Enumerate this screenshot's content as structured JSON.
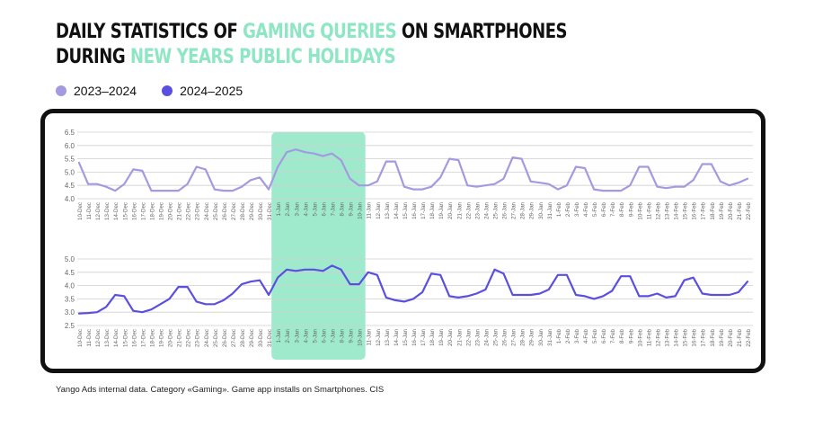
{
  "title": {
    "line1_a": "DAILY STATISTICS OF ",
    "line1_hl": "GAMING QUERIES",
    "line1_b": " ON SMARTPHONES",
    "line2_a": "DURING ",
    "line2_hl": "NEW YEARS PUBLIC HOLIDAYS",
    "highlight_color": "#8ee6c4"
  },
  "legend": [
    {
      "label": "2023–2024",
      "color": "#a39ae0"
    },
    {
      "label": "2024–2025",
      "color": "#5b4fe0"
    }
  ],
  "footnote": "Yango Ads internal data. Category «Gaming». Game app installs on Smartphones. CIS",
  "chart_data": [
    {
      "type": "line",
      "series": [
        {
          "name": "2023–2024",
          "color": "#a39ae0",
          "values": [
            5.35,
            4.55,
            4.55,
            4.45,
            4.3,
            4.55,
            5.1,
            5.05,
            4.3,
            4.3,
            4.3,
            4.3,
            4.55,
            5.2,
            5.1,
            4.35,
            4.3,
            4.3,
            4.45,
            4.7,
            4.8,
            4.35,
            5.2,
            5.75,
            5.85,
            5.75,
            5.7,
            5.6,
            5.7,
            5.45,
            4.75,
            4.5,
            4.5,
            4.65,
            5.4,
            5.4,
            4.45,
            4.35,
            4.35,
            4.45,
            4.8,
            5.5,
            5.45,
            4.5,
            4.45,
            4.5,
            4.55,
            4.75,
            5.55,
            5.5,
            4.65,
            4.6,
            4.55,
            4.35,
            4.5,
            5.2,
            5.15,
            4.35,
            4.3,
            4.3,
            4.3,
            4.5,
            5.2,
            5.2,
            4.45,
            4.4,
            4.45,
            4.45,
            4.7,
            5.3,
            5.3,
            4.65,
            4.5,
            4.6,
            4.75
          ]
        }
      ],
      "ylim": [
        4.0,
        6.5
      ],
      "yticks": [
        "4.0",
        "4.5",
        "5.0",
        "5.5",
        "6.0",
        "6.5"
      ],
      "grid": true,
      "highlight_range": [
        "1-Jan",
        "10-Jan"
      ]
    },
    {
      "type": "line",
      "series": [
        {
          "name": "2024–2025",
          "color": "#5b4fe0",
          "values": [
            2.95,
            2.97,
            3.0,
            3.2,
            3.65,
            3.6,
            3.05,
            3.0,
            3.1,
            3.3,
            3.5,
            3.95,
            3.95,
            3.4,
            3.3,
            3.3,
            3.45,
            3.7,
            4.05,
            4.15,
            4.2,
            3.65,
            4.3,
            4.6,
            4.55,
            4.6,
            4.6,
            4.55,
            4.75,
            4.6,
            4.05,
            4.05,
            4.5,
            4.4,
            3.55,
            3.45,
            3.4,
            3.5,
            3.75,
            4.45,
            4.4,
            3.6,
            3.55,
            3.6,
            3.7,
            3.85,
            4.6,
            4.45,
            3.65,
            3.65,
            3.65,
            3.7,
            3.85,
            4.4,
            4.4,
            3.65,
            3.6,
            3.5,
            3.6,
            3.8,
            4.35,
            4.35,
            3.6,
            3.6,
            3.7,
            3.55,
            3.6,
            4.2,
            4.3,
            3.7,
            3.65,
            3.65,
            3.65,
            3.75,
            4.15
          ]
        }
      ],
      "ylim": [
        2.5,
        5.0
      ],
      "yticks": [
        "2.5",
        "3.0",
        "3.5",
        "4.0",
        "4.5",
        "5.0"
      ],
      "grid": true,
      "highlight_range": [
        "1-Jan",
        "10-Jan"
      ]
    }
  ],
  "x_labels": {
    "top": [
      "10-Dec",
      "11-Dec",
      "12-Dec",
      "13-Dec",
      "14-Dec",
      "15-Dec",
      "16-Dec",
      "17-Dec",
      "18-Dec",
      "19-Dec",
      "20-Dec",
      "21-Dec",
      "22-Dec",
      "23-Dec",
      "24-Dec",
      "25-Dec",
      "26-Dec",
      "27-Dec",
      "28-Dec",
      "29-Dec",
      "30-Dec",
      "31-Dec",
      "1-Jan",
      "2-Jan",
      "3-Jan",
      "4-Jan",
      "5-Jan",
      "6-Jan",
      "7-Jan",
      "8-Jan",
      "9-Jan",
      "10-Jan",
      "11-Jan",
      "12-Jan",
      "13-Jan",
      "14-Jan",
      "15-Jan",
      "16-Jan",
      "17-Jan",
      "18-Jan",
      "19-Jan",
      "20-Jan",
      "21-Jan",
      "22-Jan",
      "23-Jan",
      "24-Jan",
      "25-Jan",
      "26-Jan",
      "27-Jan",
      "28-Jan",
      "29-Jan",
      "30-Jan",
      "31-Jan",
      "1-Feb",
      "2-Feb",
      "3-Feb",
      "4-Feb",
      "5-Feb",
      "6-Feb",
      "7-Feb",
      "8-Feb",
      "9-Feb",
      "10-Feb",
      "11-Feb",
      "12-Feb",
      "13-Feb",
      "14-Feb",
      "15-Feb",
      "16-Feb",
      "17-Feb",
      "18-Feb",
      "19-Feb",
      "20-Feb",
      "21-Feb",
      "22-Feb"
    ],
    "bottom": [
      "10-Dec",
      "11-Dec",
      "12-Dec",
      "13-Dec",
      "14-Dec",
      "15-Dec",
      "16-Dec",
      "17-Dec",
      "18-Dec",
      "19-Dec",
      "20-Dec",
      "21-Dec",
      "22-Dec",
      "23-Dec",
      "24-Dec",
      "25-Dec",
      "26-Dec",
      "27-Dec",
      "28-Dec",
      "29-Dec",
      "30-Dec",
      "31-Dec",
      "1-Jan",
      "2-Jan",
      "3-Jan",
      "4-Jan",
      "5-Jan",
      "6-Jan",
      "7-Jan",
      "8-Jan",
      "9-Jan",
      "10-Jan",
      "11-Jan",
      "12-Jan",
      "13-Jan",
      "14-Jan",
      "15-Jan",
      "16-Jan",
      "17-Jan",
      "18-Jan",
      "19-Jan",
      "20-Jan",
      "21-Jan",
      "22-Jan",
      "23-Jan",
      "24-Jan",
      "25-Jan",
      "26-Jan",
      "27-Jan",
      "28-Jan",
      "29-Jan",
      "30-Jan",
      "31-Jan",
      "1-Feb",
      "2-Feb",
      "3-Feb",
      "4-Feb",
      "5-Feb",
      "6-Feb",
      "7-Feb",
      "8-Feb",
      "9-Feb",
      "10-Feb",
      "11-Feb",
      "12-Feb",
      "13-Feb",
      "14-Feb",
      "15-Feb",
      "16-Feb",
      "17-Feb",
      "18-Feb",
      "19-Feb",
      "20-Feb",
      "21-Feb",
      "22-Feb"
    ]
  }
}
